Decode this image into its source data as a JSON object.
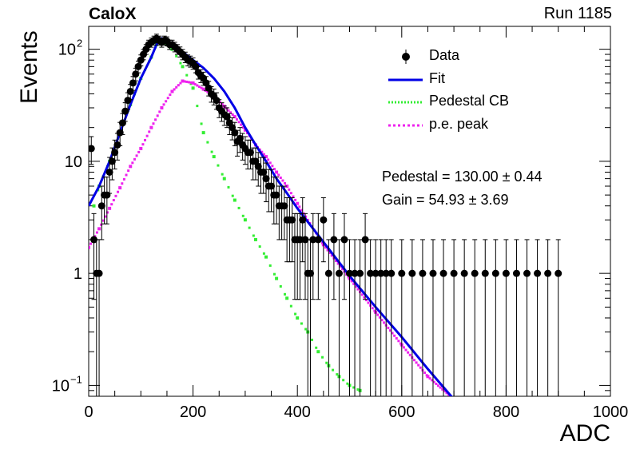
{
  "header": {
    "left_label": "CaloX",
    "right_label": "Run 1185"
  },
  "stats": {
    "pedestal": "Pedestal = 130.00 ± 0.44",
    "gain": "Gain = 54.93 ± 3.69"
  },
  "colors": {
    "data": "#000000",
    "fit": "#0000e6",
    "pedestal_cb": "#33ee33",
    "pe_peak": "#ee22ee"
  },
  "chart_data": {
    "type": "scatter",
    "xlabel": "ADC",
    "ylabel": "Events",
    "xlim": [
      0,
      1000
    ],
    "ylim": [
      0.08,
      160
    ],
    "yscale": "log",
    "xticks": [
      "0",
      "200",
      "400",
      "600",
      "800",
      "1000"
    ],
    "yticks": [
      {
        "value": 100,
        "label": "10",
        "exp": "2"
      },
      {
        "value": 10,
        "label": "10",
        "exp": ""
      },
      {
        "value": 1,
        "label": "1",
        "exp": ""
      },
      {
        "value": 0.1,
        "label": "10",
        "exp": "−1"
      }
    ],
    "legend": {
      "position": "top-right",
      "entries": [
        "Data",
        "Fit",
        "Pedestal CB",
        "p.e. peak"
      ]
    },
    "series": [
      {
        "name": "Data",
        "kind": "points_with_errors",
        "x": [
          5,
          10,
          15,
          20,
          25,
          30,
          35,
          40,
          45,
          50,
          55,
          60,
          65,
          70,
          75,
          80,
          85,
          90,
          95,
          100,
          105,
          110,
          115,
          120,
          125,
          130,
          135,
          140,
          145,
          150,
          155,
          160,
          165,
          170,
          175,
          180,
          185,
          190,
          195,
          200,
          205,
          210,
          215,
          220,
          225,
          230,
          235,
          240,
          245,
          250,
          255,
          260,
          265,
          270,
          275,
          280,
          285,
          290,
          295,
          300,
          305,
          310,
          315,
          320,
          325,
          330,
          335,
          340,
          345,
          350,
          355,
          360,
          365,
          370,
          375,
          380,
          385,
          390,
          395,
          400,
          405,
          410,
          415,
          420,
          425,
          430,
          440,
          450,
          460,
          470,
          480,
          490,
          500,
          510,
          520,
          530,
          540,
          550,
          560,
          570,
          580,
          600,
          620,
          640,
          660,
          680,
          700,
          720,
          740,
          760,
          780,
          800,
          820,
          840,
          860,
          880,
          900
        ],
        "y": [
          13,
          2,
          1,
          1,
          4,
          5,
          5,
          8,
          10,
          12,
          14,
          18,
          22,
          28,
          35,
          42,
          50,
          60,
          70,
          80,
          90,
          100,
          110,
          115,
          120,
          125,
          120,
          115,
          120,
          118,
          110,
          110,
          105,
          100,
          95,
          90,
          85,
          80,
          78,
          75,
          70,
          62,
          58,
          55,
          50,
          45,
          40,
          38,
          35,
          30,
          28,
          26,
          25,
          22,
          20,
          18,
          15,
          16,
          14,
          13,
          12,
          12,
          10,
          10,
          9,
          8,
          8,
          7,
          6,
          6,
          5,
          5,
          4,
          4,
          4,
          3,
          3,
          3,
          2,
          2,
          2,
          3,
          2,
          1,
          1,
          2,
          2,
          3,
          1,
          2,
          1,
          2,
          1,
          1,
          1,
          2,
          1,
          1,
          1,
          1,
          1,
          1,
          1,
          1,
          1,
          1,
          1,
          1,
          1,
          1,
          1,
          1,
          1,
          1,
          1,
          1,
          1
        ]
      },
      {
        "name": "Fit",
        "kind": "line",
        "x": [
          0,
          20,
          40,
          60,
          80,
          100,
          120,
          130,
          140,
          150,
          160,
          180,
          200,
          220,
          240,
          260,
          280,
          300,
          320,
          340,
          360,
          380,
          400,
          450,
          500,
          550,
          600,
          650,
          700
        ],
        "y": [
          4,
          6,
          10,
          18,
          32,
          55,
          85,
          110,
          125,
          120,
          110,
          95,
          80,
          68,
          55,
          42,
          30,
          20,
          14,
          10,
          7,
          5.2,
          3.8,
          1.9,
          0.95,
          0.5,
          0.27,
          0.14,
          0.075
        ]
      },
      {
        "name": "Pedestal CB",
        "kind": "dotted",
        "x": [
          10,
          20,
          40,
          60,
          80,
          100,
          120,
          130,
          140,
          160,
          180,
          200,
          220,
          240,
          260,
          280,
          300,
          320,
          340,
          360,
          380,
          400,
          420,
          440,
          460,
          480,
          500,
          520
        ],
        "y": [
          4,
          6,
          10,
          18,
          32,
          55,
          85,
          110,
          120,
          100,
          70,
          45,
          18,
          11,
          7,
          4.5,
          3,
          2,
          1.4,
          0.9,
          0.6,
          0.4,
          0.3,
          0.2,
          0.15,
          0.12,
          0.1,
          0.09
        ]
      },
      {
        "name": "p.e. peak",
        "kind": "dotted",
        "x": [
          0,
          20,
          40,
          60,
          80,
          100,
          120,
          140,
          160,
          180,
          200,
          220,
          240,
          260,
          280,
          300,
          320,
          340,
          360,
          380,
          400,
          450,
          500,
          550,
          600,
          650,
          700
        ],
        "y": [
          1.7,
          2.5,
          3.8,
          5.8,
          9,
          13,
          20,
          30,
          42,
          52,
          50,
          44,
          38,
          31,
          25,
          19,
          14,
          11,
          8,
          6,
          4.2,
          1.8,
          0.9,
          0.45,
          0.23,
          0.12,
          0.075
        ]
      }
    ]
  }
}
